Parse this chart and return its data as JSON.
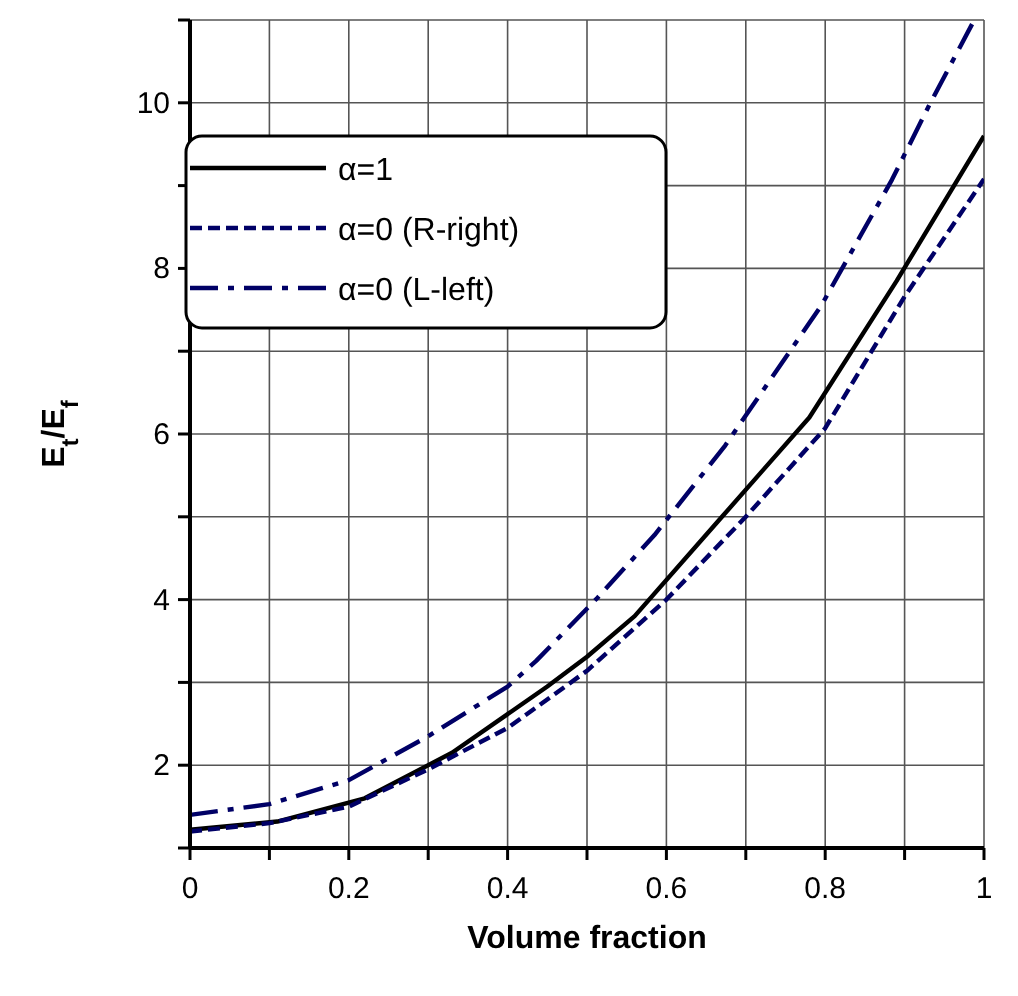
{
  "chart_data": {
    "type": "line",
    "xlabel": "Volume fraction",
    "ylabel": "E$_{t}$/E$_{f}$",
    "xlim": [
      0,
      1
    ],
    "ylim": [
      1,
      11
    ],
    "xticks": [
      0,
      {
        "value": 0.1,
        "label": null
      },
      0.2,
      {
        "value": 0.3,
        "label": null
      },
      0.4,
      {
        "value": 0.5,
        "label": null
      },
      0.6,
      {
        "value": 0.7,
        "label": null
      },
      0.8,
      {
        "value": 0.9,
        "label": null
      },
      1
    ],
    "yticks": [
      {
        "value": 1,
        "label": null
      },
      2,
      {
        "value": 3,
        "label": null
      },
      4,
      {
        "value": 5,
        "label": null
      },
      6,
      {
        "value": 7,
        "label": null
      },
      8,
      {
        "value": 9,
        "label": null
      },
      10,
      {
        "value": 11,
        "label": null
      }
    ],
    "grid": true,
    "legend": "top left",
    "series": [
      {
        "name": "α=1",
        "color": "#000000",
        "line_style": "solid",
        "x": [
          0,
          0.11,
          0.22,
          0.33,
          0.45,
          0.5,
          0.56,
          0.67,
          0.78,
          0.89,
          1
        ],
        "values": [
          1.22,
          1.32,
          1.6,
          2.15,
          2.95,
          3.31,
          3.8,
          5.0,
          6.2,
          7.85,
          9.6
        ]
      },
      {
        "name": "α=0  (R-right)",
        "color": "#000066",
        "line_style": "dashed",
        "x": [
          0,
          0.1,
          0.2,
          0.3,
          0.4,
          0.5,
          0.6,
          0.7,
          0.8,
          0.9,
          1
        ],
        "values": [
          1.2,
          1.3,
          1.5,
          1.95,
          2.45,
          3.14,
          4.0,
          5.0,
          6.07,
          7.66,
          9.08
        ]
      },
      {
        "name": "α=0  (L-left)",
        "color": "#000066",
        "line_style": "dashdot",
        "x": [
          0,
          0.1,
          0.2,
          0.3,
          0.4,
          0.436,
          0.513,
          0.585,
          0.674,
          0.795,
          0.884,
          0.932,
          0.985
        ],
        "values": [
          1.4,
          1.53,
          1.82,
          2.35,
          2.95,
          3.26,
          4.02,
          4.78,
          5.86,
          7.55,
          9.07,
          9.99,
          10.95
        ]
      }
    ]
  }
}
